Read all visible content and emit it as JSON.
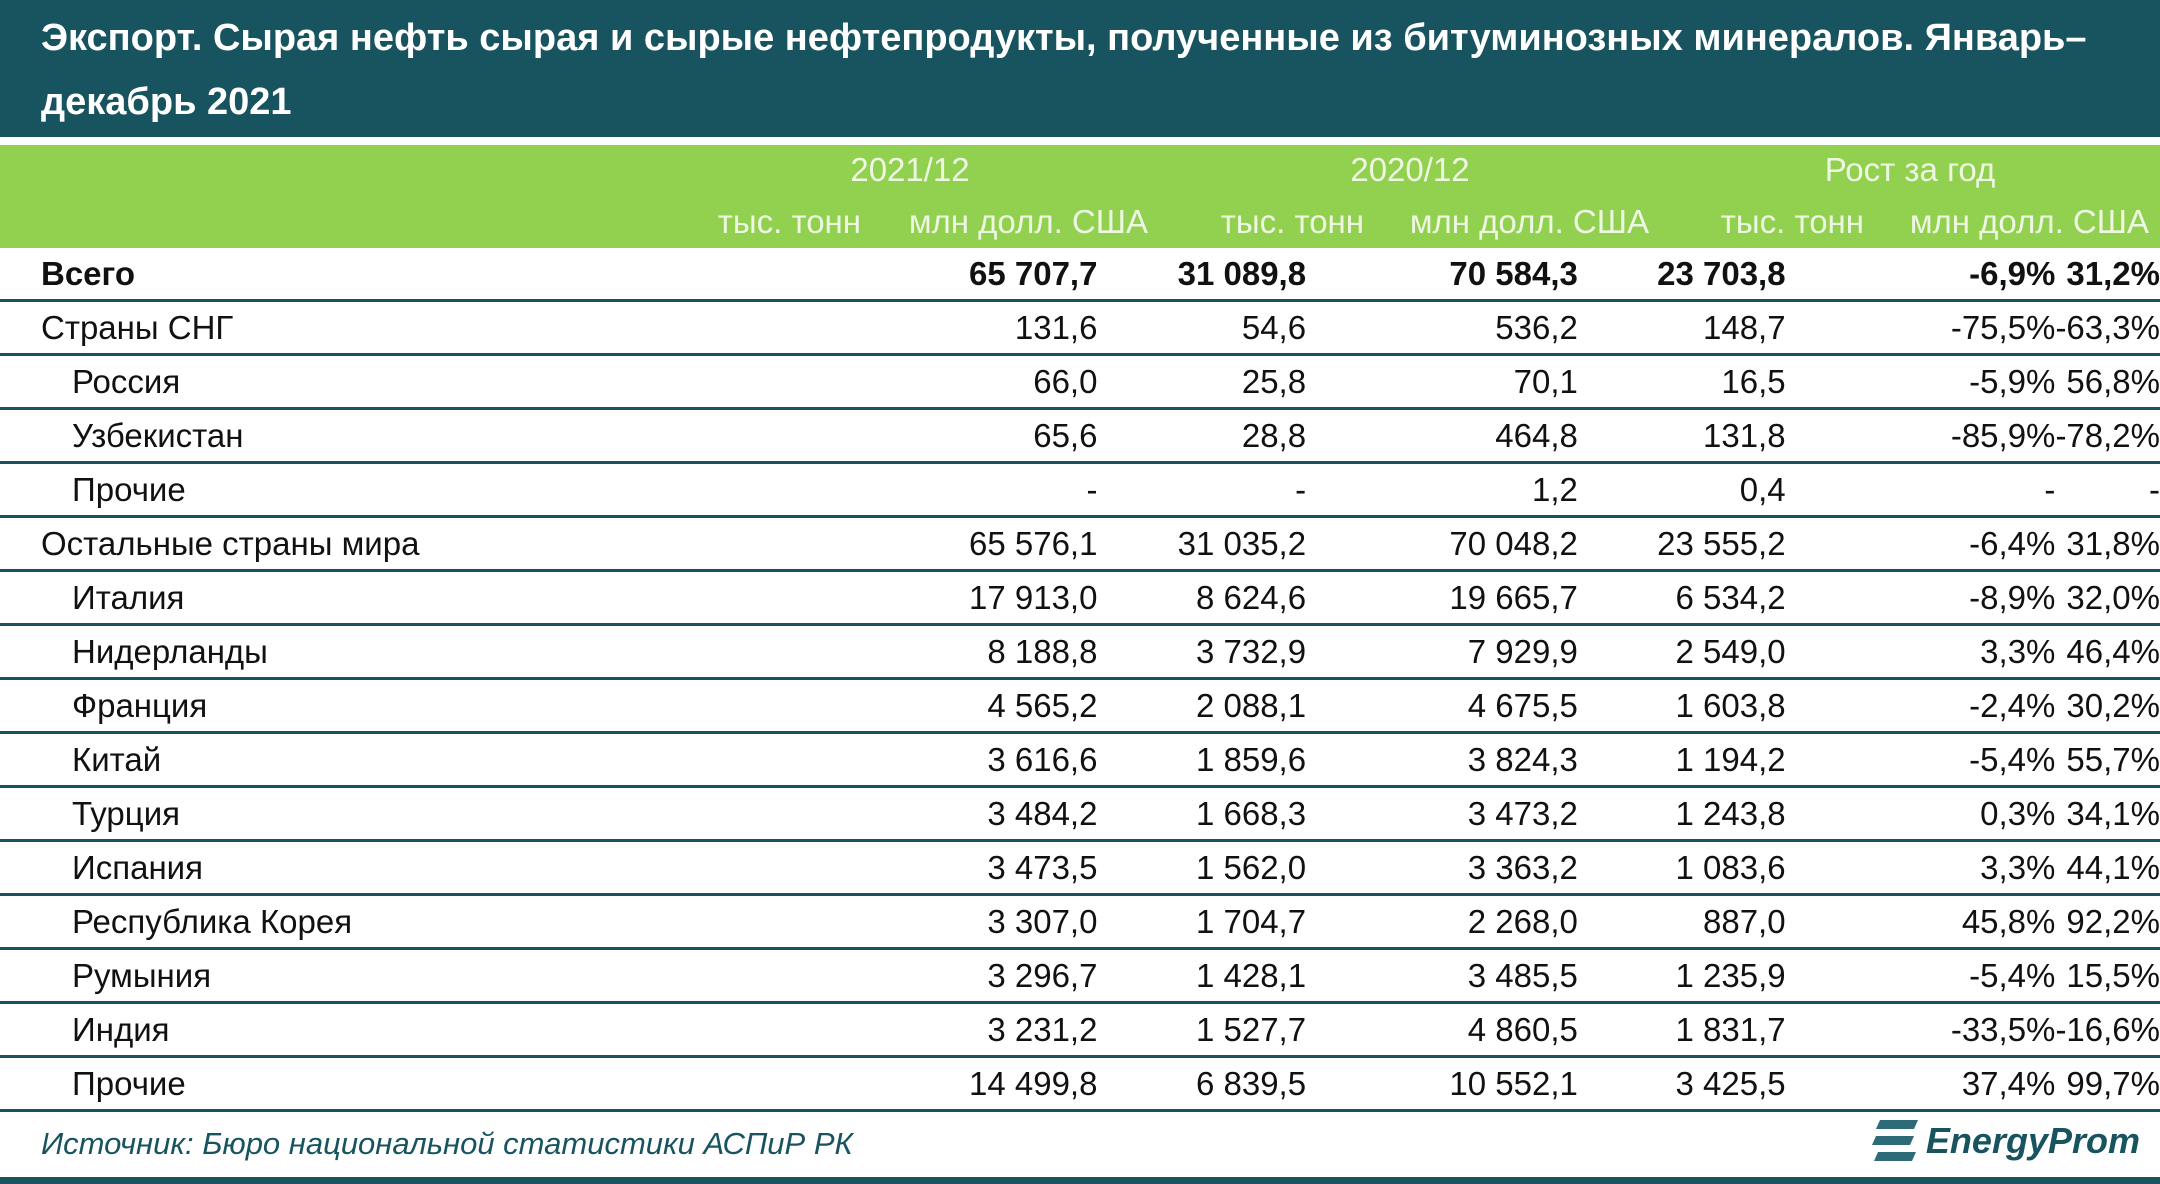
{
  "title": "Экспорт. Сырая нефть сырая и сырые нефтепродукты, полученные из битуминозных минералов. Январь–декабрь 2021",
  "header": {
    "groups": [
      "2021/12",
      "2020/12",
      "Рост за год"
    ],
    "units": [
      "тыс. тонн",
      "млн долл. США",
      "тыс. тонн",
      "млн долл. США",
      "тыс. тонн",
      "млн долл. США"
    ]
  },
  "rows": [
    {
      "label": "Всего",
      "values": [
        "65 707,7",
        "31 089,8",
        "70 584,3",
        "23 703,8",
        "-6,9%",
        "31,2%"
      ]
    },
    {
      "label": "Страны СНГ",
      "values": [
        "131,6",
        "54,6",
        "536,2",
        "148,7",
        "-75,5%",
        "-63,3%"
      ]
    },
    {
      "label": "Россия",
      "values": [
        "66,0",
        "25,8",
        "70,1",
        "16,5",
        "-5,9%",
        "56,8%"
      ]
    },
    {
      "label": "Узбекистан",
      "values": [
        "65,6",
        "28,8",
        "464,8",
        "131,8",
        "-85,9%",
        "-78,2%"
      ]
    },
    {
      "label": "Прочие",
      "values": [
        "-",
        "-",
        "1,2",
        "0,4",
        "-",
        "-"
      ]
    },
    {
      "label": "Остальные страны мира",
      "values": [
        "65 576,1",
        "31 035,2",
        "70 048,2",
        "23 555,2",
        "-6,4%",
        "31,8%"
      ]
    },
    {
      "label": "Италия",
      "values": [
        "17 913,0",
        "8 624,6",
        "19 665,7",
        "6 534,2",
        "-8,9%",
        "32,0%"
      ]
    },
    {
      "label": "Нидерланды",
      "values": [
        "8 188,8",
        "3 732,9",
        "7 929,9",
        "2 549,0",
        "3,3%",
        "46,4%"
      ]
    },
    {
      "label": "Франция",
      "values": [
        "4 565,2",
        "2 088,1",
        "4 675,5",
        "1 603,8",
        "-2,4%",
        "30,2%"
      ]
    },
    {
      "label": "Китай",
      "values": [
        "3 616,6",
        "1 859,6",
        "3 824,3",
        "1 194,2",
        "-5,4%",
        "55,7%"
      ]
    },
    {
      "label": "Турция",
      "values": [
        "3 484,2",
        "1 668,3",
        "3 473,2",
        "1 243,8",
        "0,3%",
        "34,1%"
      ]
    },
    {
      "label": "Испания",
      "values": [
        "3 473,5",
        "1 562,0",
        "3 363,2",
        "1 083,6",
        "3,3%",
        "44,1%"
      ]
    },
    {
      "label": "Республика Корея",
      "values": [
        "3 307,0",
        "1 704,7",
        "2 268,0",
        "887,0",
        "45,8%",
        "92,2%"
      ]
    },
    {
      "label": "Румыния",
      "values": [
        "3 296,7",
        "1 428,1",
        "3 485,5",
        "1 235,9",
        "-5,4%",
        "15,5%"
      ]
    },
    {
      "label": "Индия",
      "values": [
        "3 231,2",
        "1 527,7",
        "4 860,5",
        "1 831,7",
        "-33,5%",
        "-16,6%"
      ]
    },
    {
      "label": "Прочие",
      "values": [
        "14 499,8",
        "6 839,5",
        "10 552,1",
        "3 425,5",
        "37,4%",
        "99,7%"
      ]
    }
  ],
  "source": "Источник: Бюро национальной статистики АСПиР РК",
  "logo": "EnergyProm",
  "colors": {
    "teal": "#17545f",
    "green": "#92d050"
  }
}
